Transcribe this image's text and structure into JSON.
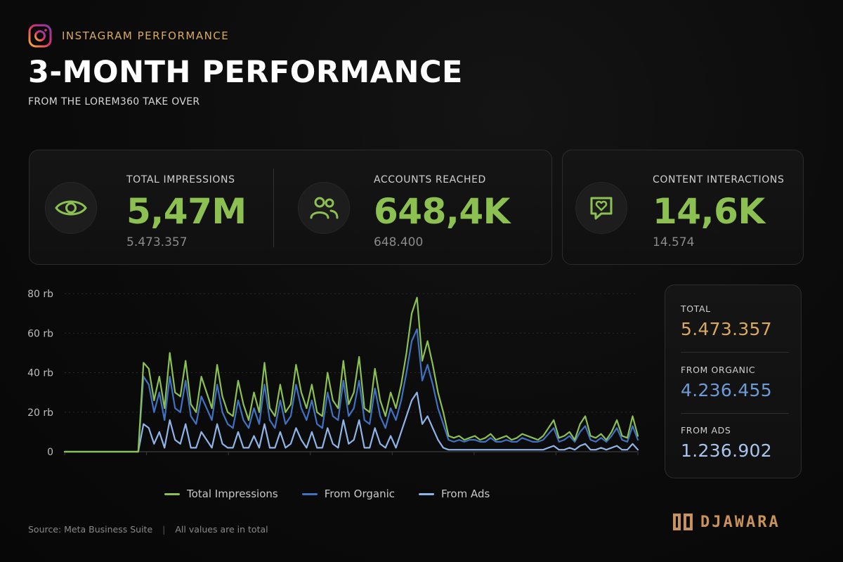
{
  "header": {
    "eyebrow": "INSTAGRAM PERFORMANCE",
    "title": "3-MONTH PERFORMANCE",
    "subtitle": "FROM THE LOREM360 TAKE OVER"
  },
  "kpis": [
    {
      "label": "TOTAL IMPRESSIONS",
      "value": "5,47M",
      "sub": "5.473.357",
      "icon": "eye-icon"
    },
    {
      "label": "ACCOUNTS REACHED",
      "value": "648,4K",
      "sub": "648.400",
      "icon": "users-icon"
    },
    {
      "label": "CONTENT INTERACTIONS",
      "value": "14,6K",
      "sub": "14.574",
      "icon": "heart-chat-icon"
    }
  ],
  "totals": {
    "total_label": "TOTAL",
    "total_value": "5.473.357",
    "organic_label": "FROM ORGANIC",
    "organic_value": "4.236.455",
    "ads_label": "FROM ADS",
    "ads_value": "1.236.902"
  },
  "footer": {
    "source": "Source: Meta Business Suite",
    "separator": "|",
    "note": "All values are in total"
  },
  "brand": {
    "name": "DJAWARA"
  },
  "colors": {
    "total": "#8cc152",
    "organic": "#3f72c4",
    "ads": "#8fb4e8",
    "accent": "#d9a95f",
    "organic_text": "#6e9bd6",
    "ads_text": "#a9c4ec"
  },
  "chart_data": {
    "type": "line",
    "title": "",
    "xlabel": "",
    "ylabel": "",
    "ylim": [
      0,
      80000
    ],
    "yticks": [
      0,
      20000,
      40000,
      60000,
      80000
    ],
    "ytick_labels": [
      "0",
      "20 rb",
      "40 rb",
      "60 rb",
      "80 rb"
    ],
    "grid": true,
    "legend_position": "bottom",
    "x": [
      1,
      2,
      3,
      4,
      5,
      6,
      7,
      8,
      9,
      10,
      11,
      12,
      13,
      14,
      15,
      16,
      17,
      18,
      19,
      20,
      21,
      22,
      23,
      24,
      25,
      26,
      27,
      28,
      29,
      30,
      31,
      32,
      33,
      34,
      35,
      36,
      37,
      38,
      39,
      40,
      41,
      42,
      43,
      44,
      45,
      46,
      47,
      48,
      49,
      50,
      51,
      52,
      53,
      54,
      55,
      56,
      57,
      58,
      59,
      60,
      61,
      62,
      63,
      64,
      65,
      66,
      67,
      68,
      69,
      70,
      71,
      72,
      73,
      74,
      75,
      76,
      77,
      78,
      79,
      80,
      81,
      82,
      83,
      84,
      85,
      86,
      87,
      88,
      89,
      90,
      91,
      92,
      93,
      94,
      95,
      96,
      97,
      98,
      99,
      100,
      101,
      102,
      103,
      104,
      105,
      106,
      107,
      108,
      109,
      110
    ],
    "series": [
      {
        "name": "Total Impressions",
        "values": [
          0,
          0,
          0,
          0,
          0,
          0,
          0,
          0,
          0,
          0,
          0,
          0,
          0,
          0,
          0,
          45000,
          42000,
          26000,
          38000,
          22000,
          50000,
          30000,
          28000,
          46000,
          24000,
          20000,
          38000,
          30000,
          22000,
          44000,
          28000,
          20000,
          18000,
          36000,
          24000,
          16000,
          30000,
          20000,
          45000,
          22000,
          18000,
          34000,
          20000,
          24000,
          44000,
          30000,
          22000,
          34000,
          20000,
          18000,
          40000,
          26000,
          22000,
          46000,
          24000,
          30000,
          48000,
          22000,
          20000,
          42000,
          26000,
          18000,
          30000,
          22000,
          34000,
          50000,
          70000,
          78000,
          46000,
          56000,
          44000,
          30000,
          20000,
          8000,
          7000,
          8000,
          6000,
          7000,
          8000,
          6000,
          7000,
          9000,
          6000,
          7000,
          8000,
          6000,
          7000,
          9000,
          8000,
          7000,
          6000,
          8000,
          12000,
          16000,
          7000,
          8000,
          10000,
          6000,
          14000,
          18000,
          8000,
          7000,
          9000,
          6000,
          10000,
          16000,
          8000,
          7000,
          18000,
          8000
        ]
      },
      {
        "name": "From Organic",
        "values": [
          0,
          0,
          0,
          0,
          0,
          0,
          0,
          0,
          0,
          0,
          0,
          0,
          0,
          0,
          0,
          38000,
          34000,
          20000,
          30000,
          16000,
          38000,
          22000,
          20000,
          36000,
          18000,
          14000,
          28000,
          22000,
          16000,
          34000,
          20000,
          14000,
          12000,
          26000,
          16000,
          12000,
          22000,
          14000,
          34000,
          16000,
          12000,
          26000,
          14000,
          18000,
          34000,
          22000,
          16000,
          26000,
          14000,
          12000,
          30000,
          18000,
          16000,
          36000,
          18000,
          22000,
          36000,
          16000,
          14000,
          32000,
          18000,
          12000,
          22000,
          16000,
          26000,
          40000,
          56000,
          62000,
          36000,
          44000,
          34000,
          22000,
          14000,
          6000,
          5000,
          6000,
          5000,
          6000,
          6000,
          5000,
          5000,
          7000,
          5000,
          5000,
          6000,
          5000,
          5000,
          7000,
          6000,
          5000,
          5000,
          6000,
          9000,
          12000,
          5000,
          6000,
          8000,
          5000,
          10000,
          13000,
          6000,
          5000,
          7000,
          5000,
          8000,
          12000,
          6000,
          5000,
          13000,
          6000
        ]
      },
      {
        "name": "From Ads",
        "values": [
          0,
          0,
          0,
          0,
          0,
          0,
          0,
          0,
          0,
          0,
          0,
          0,
          0,
          0,
          0,
          14000,
          12000,
          4000,
          10000,
          2000,
          16000,
          6000,
          4000,
          14000,
          2000,
          2000,
          10000,
          6000,
          2000,
          14000,
          4000,
          2000,
          2000,
          10000,
          2000,
          2000,
          8000,
          2000,
          14000,
          2000,
          2000,
          10000,
          2000,
          4000,
          12000,
          6000,
          2000,
          10000,
          2000,
          2000,
          12000,
          4000,
          2000,
          16000,
          4000,
          6000,
          16000,
          2000,
          2000,
          12000,
          4000,
          2000,
          8000,
          2000,
          10000,
          18000,
          26000,
          30000,
          14000,
          18000,
          12000,
          6000,
          2000,
          1000,
          1000,
          1000,
          1000,
          1000,
          1000,
          1000,
          1000,
          1000,
          1000,
          1000,
          1000,
          1000,
          1000,
          1000,
          1000,
          1000,
          1000,
          1000,
          2000,
          3000,
          1000,
          1000,
          2000,
          1000,
          3000,
          4000,
          1000,
          1000,
          2000,
          1000,
          2000,
          3000,
          1000,
          1000,
          4000,
          1000
        ]
      }
    ]
  }
}
